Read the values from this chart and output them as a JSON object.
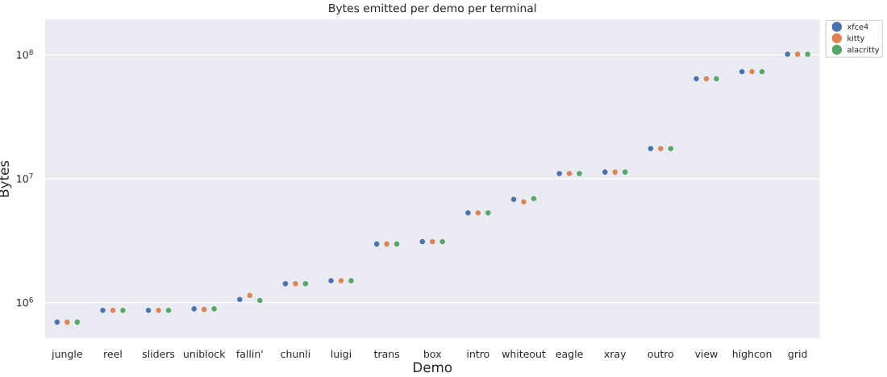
{
  "chart_data": {
    "type": "scatter",
    "title": "Bytes emitted per demo per terminal",
    "xlabel": "Demo",
    "ylabel": "Bytes",
    "categories": [
      "jungle",
      "reel",
      "sliders",
      "uniblock",
      "fallin'",
      "chunli",
      "luigi",
      "trans",
      "box",
      "intro",
      "whiteout",
      "eagle",
      "xray",
      "outro",
      "view",
      "highcon",
      "grid"
    ],
    "series": [
      {
        "name": "xfce4",
        "color": "#4c72b0",
        "values": [
          695000,
          865000,
          865000,
          890000,
          1060000,
          1420000,
          1500000,
          2970000,
          3100000,
          5300000,
          6800000,
          11000000,
          11300000,
          17500000,
          64000000,
          73000000,
          101000000
        ]
      },
      {
        "name": "kitty",
        "color": "#dd8452",
        "values": [
          695000,
          865000,
          865000,
          880000,
          1140000,
          1420000,
          1500000,
          2970000,
          3100000,
          5300000,
          6500000,
          11000000,
          11300000,
          17500000,
          64000000,
          73000000,
          101000000
        ]
      },
      {
        "name": "alacritty",
        "color": "#55a868",
        "values": [
          695000,
          865000,
          865000,
          890000,
          1040000,
          1420000,
          1500000,
          2970000,
          3100000,
          5300000,
          6900000,
          11000000,
          11300000,
          17500000,
          64000000,
          73000000,
          101000000
        ]
      }
    ],
    "log": "y",
    "ylim": [
      505000,
      195000000
    ],
    "yticks": [
      {
        "value": 1000000,
        "label": "10$^{6}$"
      },
      {
        "value": 10000000,
        "label": "10$^{7}$"
      },
      {
        "value": 100000000,
        "label": "10$^{8}$"
      }
    ],
    "grid": "y",
    "legend": "top right",
    "marker": "circle"
  }
}
